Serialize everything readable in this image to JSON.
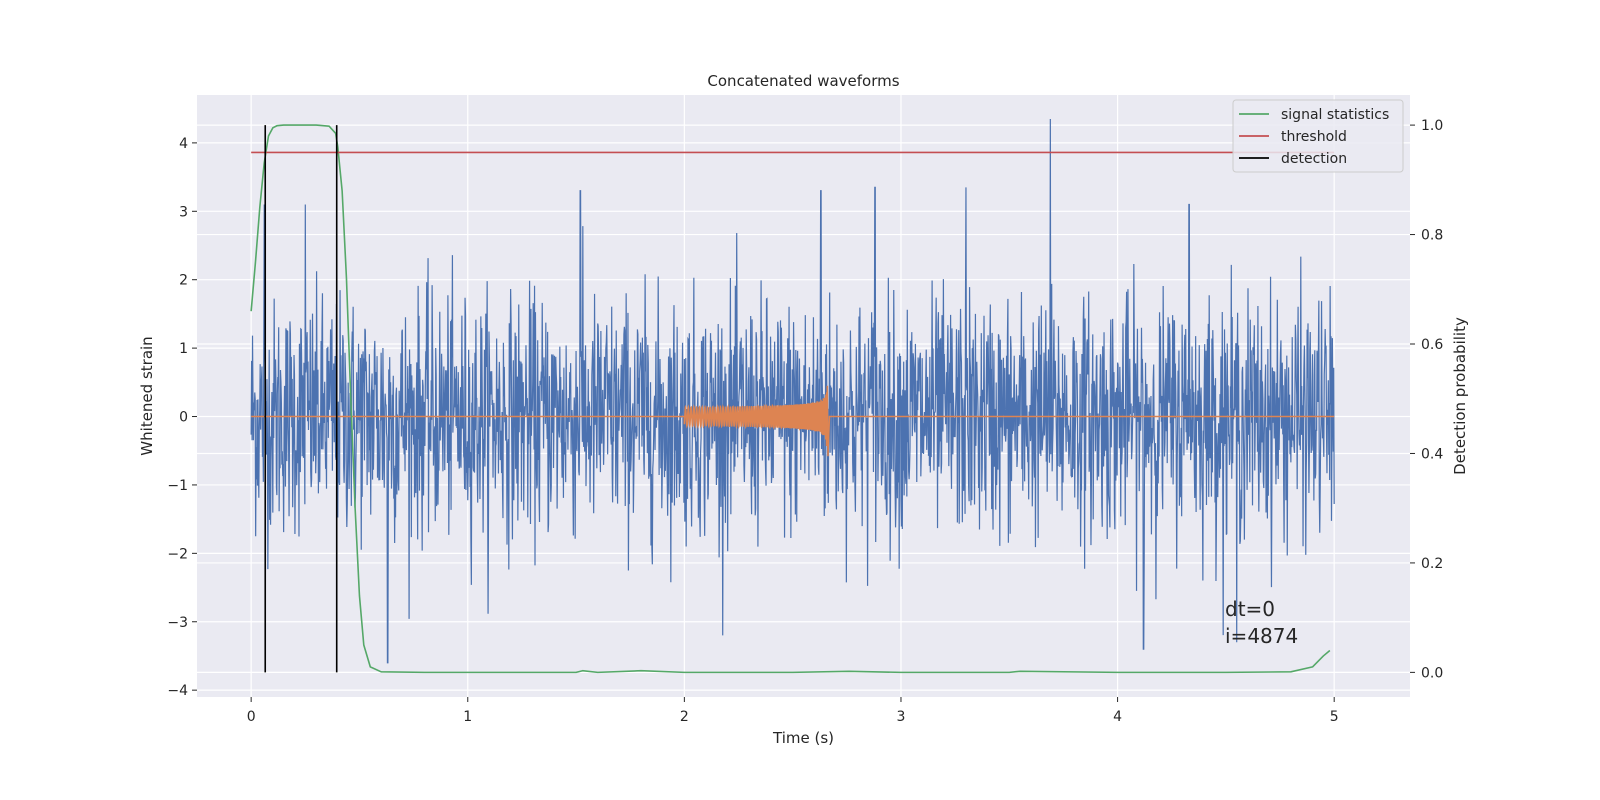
{
  "chart_data": {
    "type": "line",
    "title": "Concatenated waveforms",
    "xlabel": "Time (s)",
    "ylabel": "Whitened strain",
    "ylabel_right": "Detection probability",
    "xlim": [
      -0.25,
      5.35
    ],
    "ylim": [
      -4.1,
      4.7
    ],
    "ylim_right": [
      -0.045,
      1.055
    ],
    "xticks": [
      0,
      1,
      2,
      3,
      4,
      5
    ],
    "yticks": [
      -4,
      -3,
      -2,
      -1,
      0,
      1,
      2,
      3,
      4
    ],
    "yticks_right": [
      0.0,
      0.2,
      0.4,
      0.6,
      0.8,
      1.0
    ],
    "ytick_labels": [
      "−4",
      "−3",
      "−2",
      "−1",
      "0",
      "1",
      "2",
      "3",
      "4"
    ],
    "ytick_labels_right": [
      "0.0",
      "0.2",
      "0.4",
      "0.6",
      "0.8",
      "1.0"
    ],
    "xtick_labels": [
      "0",
      "1",
      "2",
      "3",
      "4",
      "5"
    ],
    "grid": true,
    "legend_position": "top-right",
    "colors": {
      "strain": "#4c72b0",
      "template": "#dd8452",
      "stat": "#55a868",
      "threshold": "#c44e52",
      "detection": "#000000",
      "plot_bg": "#eaeaf2",
      "grid": "#ffffff"
    },
    "series": [
      {
        "name": "",
        "kind": "noise-strain",
        "x_range": [
          0,
          5
        ],
        "amplitude_std": 0.85,
        "note_peaks": [
          [
            0.06,
            3.1
          ],
          [
            0.25,
            3.1
          ],
          [
            1.52,
            3.3
          ],
          [
            2.63,
            3.3
          ],
          [
            2.88,
            3.35
          ],
          [
            3.3,
            3.35
          ],
          [
            3.69,
            4.35
          ],
          [
            4.33,
            3.1
          ],
          [
            0.63,
            -3.6
          ],
          [
            4.12,
            -3.4
          ],
          [
            4.55,
            -3.3
          ]
        ]
      },
      {
        "name": "",
        "kind": "chirp",
        "x_range": [
          2.0,
          2.66
        ],
        "peak_time": 2.66,
        "peak_amplitude": 0.45,
        "min_amplitude": -0.58
      },
      {
        "name": "signal statistics",
        "axis": "right",
        "x": [
          0.0,
          0.02,
          0.04,
          0.06,
          0.08,
          0.1,
          0.12,
          0.15,
          0.2,
          0.3,
          0.36,
          0.39,
          0.4,
          0.42,
          0.44,
          0.46,
          0.48,
          0.5,
          0.52,
          0.55,
          0.6,
          0.8,
          1.0,
          1.5,
          1.53,
          1.6,
          1.8,
          2.0,
          2.5,
          2.76,
          3.0,
          3.5,
          3.55,
          4.0,
          4.5,
          4.8,
          4.9,
          4.95,
          4.98
        ],
        "values": [
          0.66,
          0.75,
          0.85,
          0.93,
          0.98,
          0.995,
          0.999,
          1.0,
          1.0,
          1.0,
          0.998,
          0.985,
          0.96,
          0.88,
          0.72,
          0.5,
          0.3,
          0.14,
          0.05,
          0.01,
          0.001,
          0.0,
          0.0,
          0.0,
          0.003,
          0.0,
          0.003,
          0.0,
          0.0,
          0.002,
          0.0,
          0.0,
          0.002,
          0.0,
          0.0,
          0.001,
          0.01,
          0.03,
          0.04
        ]
      },
      {
        "name": "threshold",
        "axis": "right",
        "x": [
          0.0,
          5.0
        ],
        "values": [
          0.95,
          0.95
        ]
      },
      {
        "name": "detection",
        "kind": "vertical-lines",
        "x": [
          0.065,
          0.395
        ],
        "y_range_right": [
          0.0,
          1.0
        ]
      }
    ],
    "annotations": [
      "dt=0",
      "i=4874"
    ]
  }
}
